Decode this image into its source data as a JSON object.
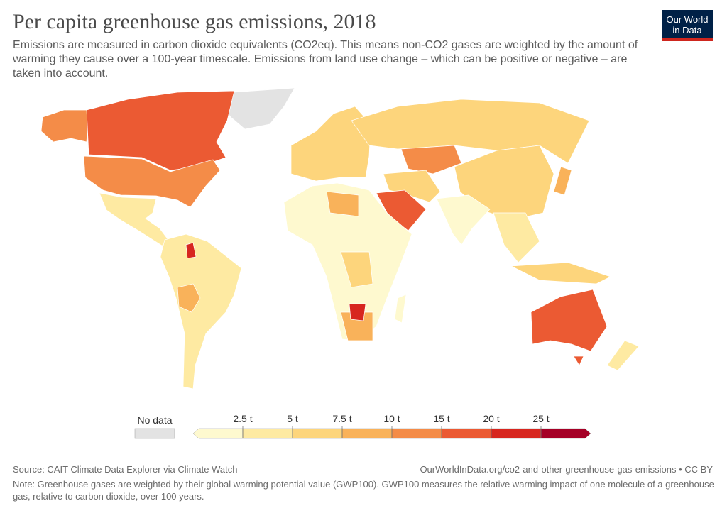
{
  "header": {
    "title": "Per capita greenhouse gas emissions, 2018",
    "subtitle": "Emissions are measured in carbon dioxide equivalents (CO2eq). This means non-CO2 gases are weighted by the amount of warming they cause over a 100-year timescale. Emissions from land use change – which can be positive or negative – are taken into account.",
    "logo": [
      "Our World",
      "in Data"
    ]
  },
  "legend": {
    "no_data": {
      "label": "No data",
      "color": "#e3e3e3"
    },
    "ticks": [
      {
        "value": 2.5,
        "label": "2.5 t"
      },
      {
        "value": 5,
        "label": "5 t"
      },
      {
        "value": 7.5,
        "label": "7.5 t"
      },
      {
        "value": 10,
        "label": "10 t"
      },
      {
        "value": 15,
        "label": "15 t"
      },
      {
        "value": 20,
        "label": "20 t"
      },
      {
        "value": 25,
        "label": "25 t"
      }
    ],
    "colors": [
      "#fef9cf",
      "#feeaa2",
      "#fdd57c",
      "#f9b25a",
      "#f48c48",
      "#eb5a33",
      "#d7261f",
      "#a50026"
    ]
  },
  "footer": {
    "source": "Source: CAIT Climate Data Explorer via Climate Watch",
    "url": "OurWorldInData.org/co2-and-other-greenhouse-gas-emissions • CC BY",
    "note": "Note: Greenhouse gases are weighted by their global warming potential value (GWP100). GWP100 measures the relative warming impact of one molecule of a greenhouse gas, relative to carbon dioxide, over 100 years."
  }
}
